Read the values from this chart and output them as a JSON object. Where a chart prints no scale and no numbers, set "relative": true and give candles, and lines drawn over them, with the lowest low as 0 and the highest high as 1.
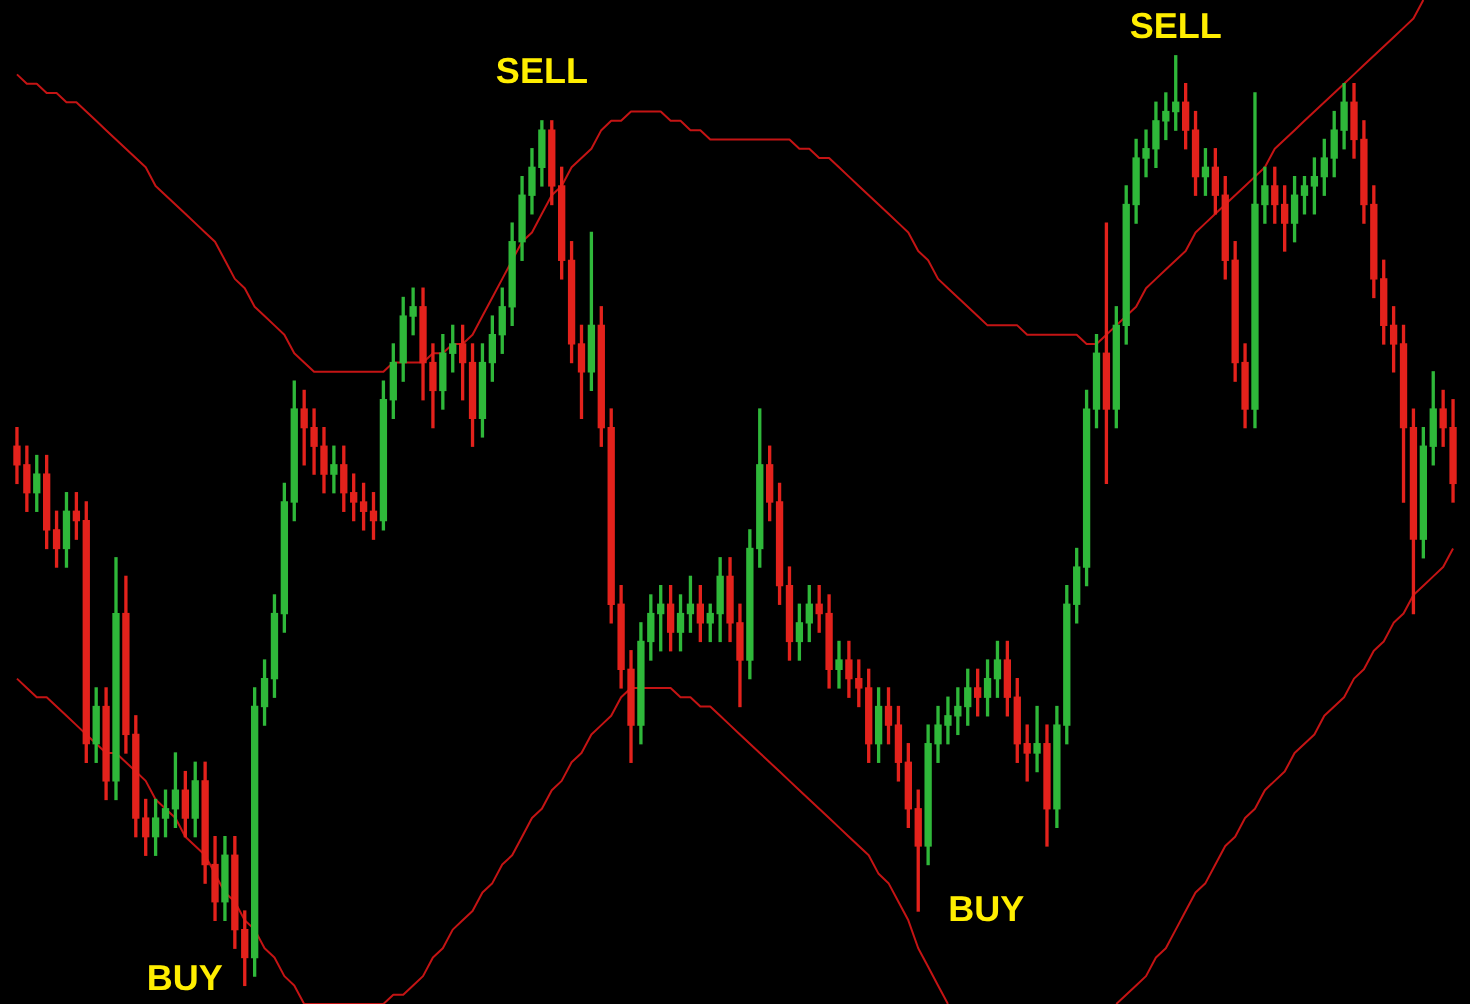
{
  "chart_data": {
    "type": "candlestick",
    "relative": true,
    "tick_labels": false,
    "grid": false,
    "legend": false,
    "categories": [
      null,
      null,
      null,
      null,
      null,
      null,
      null,
      null,
      null,
      null,
      null,
      null,
      null,
      null,
      null,
      null,
      null,
      null,
      null,
      null,
      null,
      null,
      null,
      null,
      null,
      null,
      null,
      null,
      null,
      null,
      null,
      null,
      null,
      null,
      null,
      null,
      null,
      null,
      null,
      null,
      null,
      null,
      null,
      null,
      null,
      null,
      null,
      null,
      null,
      null,
      null,
      null,
      null,
      null,
      null,
      null,
      null,
      null,
      null,
      null,
      null,
      null,
      null,
      null,
      null,
      null,
      null,
      null,
      null,
      null,
      null,
      null,
      null,
      null,
      null,
      null,
      null,
      null,
      null,
      null,
      null,
      null,
      null,
      null,
      null,
      null,
      null,
      null,
      null,
      null,
      null,
      null,
      null,
      null,
      null,
      null,
      null,
      null,
      null,
      null,
      null,
      null,
      null,
      null,
      null,
      null,
      null,
      null,
      null,
      null,
      null,
      null,
      null,
      null,
      null,
      null,
      null,
      null,
      null,
      null,
      null,
      null,
      null,
      null,
      null,
      null,
      null,
      null,
      null,
      null,
      null,
      null,
      null,
      null,
      null,
      null,
      null,
      null,
      null,
      null,
      null,
      null,
      null,
      null,
      null,
      null
    ],
    "ohlc": [
      [
        0.58,
        0.6,
        0.54,
        0.56
      ],
      [
        0.56,
        0.58,
        0.51,
        0.53
      ],
      [
        0.53,
        0.57,
        0.51,
        0.55
      ],
      [
        0.55,
        0.57,
        0.47,
        0.49
      ],
      [
        0.49,
        0.51,
        0.45,
        0.47
      ],
      [
        0.47,
        0.53,
        0.45,
        0.51
      ],
      [
        0.51,
        0.53,
        0.48,
        0.5
      ],
      [
        0.5,
        0.52,
        0.24,
        0.26
      ],
      [
        0.26,
        0.32,
        0.24,
        0.3
      ],
      [
        0.3,
        0.32,
        0.2,
        0.22
      ],
      [
        0.22,
        0.46,
        0.2,
        0.4
      ],
      [
        0.4,
        0.44,
        0.25,
        0.27
      ],
      [
        0.27,
        0.29,
        0.16,
        0.18
      ],
      [
        0.18,
        0.2,
        0.14,
        0.16
      ],
      [
        0.16,
        0.2,
        0.14,
        0.18
      ],
      [
        0.18,
        0.21,
        0.16,
        0.19
      ],
      [
        0.19,
        0.25,
        0.17,
        0.21
      ],
      [
        0.21,
        0.23,
        0.16,
        0.18
      ],
      [
        0.18,
        0.24,
        0.16,
        0.22
      ],
      [
        0.22,
        0.24,
        0.11,
        0.13
      ],
      [
        0.13,
        0.16,
        0.07,
        0.09
      ],
      [
        0.09,
        0.16,
        0.07,
        0.14
      ],
      [
        0.14,
        0.16,
        0.04,
        0.06
      ],
      [
        0.06,
        0.08,
        0.0,
        0.03
      ],
      [
        0.03,
        0.32,
        0.01,
        0.3
      ],
      [
        0.3,
        0.35,
        0.28,
        0.33
      ],
      [
        0.33,
        0.42,
        0.31,
        0.4
      ],
      [
        0.4,
        0.54,
        0.38,
        0.52
      ],
      [
        0.52,
        0.65,
        0.5,
        0.62
      ],
      [
        0.62,
        0.64,
        0.56,
        0.6
      ],
      [
        0.6,
        0.62,
        0.55,
        0.58
      ],
      [
        0.58,
        0.6,
        0.53,
        0.55
      ],
      [
        0.55,
        0.58,
        0.53,
        0.56
      ],
      [
        0.56,
        0.58,
        0.51,
        0.53
      ],
      [
        0.53,
        0.55,
        0.5,
        0.52
      ],
      [
        0.52,
        0.54,
        0.49,
        0.51
      ],
      [
        0.51,
        0.53,
        0.48,
        0.5
      ],
      [
        0.5,
        0.65,
        0.49,
        0.63
      ],
      [
        0.63,
        0.69,
        0.61,
        0.67
      ],
      [
        0.67,
        0.74,
        0.65,
        0.72
      ],
      [
        0.72,
        0.75,
        0.7,
        0.73
      ],
      [
        0.73,
        0.75,
        0.63,
        0.67
      ],
      [
        0.67,
        0.69,
        0.6,
        0.64
      ],
      [
        0.64,
        0.7,
        0.62,
        0.68
      ],
      [
        0.68,
        0.71,
        0.66,
        0.69
      ],
      [
        0.69,
        0.71,
        0.63,
        0.67
      ],
      [
        0.67,
        0.69,
        0.58,
        0.61
      ],
      [
        0.61,
        0.69,
        0.59,
        0.67
      ],
      [
        0.67,
        0.72,
        0.65,
        0.7
      ],
      [
        0.7,
        0.75,
        0.68,
        0.73
      ],
      [
        0.73,
        0.82,
        0.71,
        0.8
      ],
      [
        0.8,
        0.87,
        0.78,
        0.85
      ],
      [
        0.85,
        0.9,
        0.83,
        0.88
      ],
      [
        0.88,
        0.93,
        0.86,
        0.92
      ],
      [
        0.92,
        0.93,
        0.84,
        0.86
      ],
      [
        0.86,
        0.88,
        0.76,
        0.78
      ],
      [
        0.78,
        0.8,
        0.67,
        0.69
      ],
      [
        0.69,
        0.71,
        0.61,
        0.66
      ],
      [
        0.66,
        0.81,
        0.64,
        0.71
      ],
      [
        0.71,
        0.73,
        0.58,
        0.6
      ],
      [
        0.6,
        0.62,
        0.39,
        0.41
      ],
      [
        0.41,
        0.43,
        0.32,
        0.34
      ],
      [
        0.34,
        0.36,
        0.24,
        0.28
      ],
      [
        0.28,
        0.39,
        0.26,
        0.37
      ],
      [
        0.37,
        0.42,
        0.35,
        0.4
      ],
      [
        0.4,
        0.43,
        0.36,
        0.41
      ],
      [
        0.41,
        0.43,
        0.36,
        0.38
      ],
      [
        0.38,
        0.42,
        0.36,
        0.4
      ],
      [
        0.4,
        0.44,
        0.38,
        0.41
      ],
      [
        0.41,
        0.43,
        0.37,
        0.39
      ],
      [
        0.39,
        0.41,
        0.37,
        0.4
      ],
      [
        0.4,
        0.46,
        0.37,
        0.44
      ],
      [
        0.44,
        0.46,
        0.37,
        0.39
      ],
      [
        0.39,
        0.41,
        0.3,
        0.35
      ],
      [
        0.35,
        0.49,
        0.33,
        0.47
      ],
      [
        0.47,
        0.62,
        0.45,
        0.56
      ],
      [
        0.56,
        0.58,
        0.5,
        0.52
      ],
      [
        0.52,
        0.54,
        0.41,
        0.43
      ],
      [
        0.43,
        0.45,
        0.35,
        0.37
      ],
      [
        0.37,
        0.41,
        0.35,
        0.39
      ],
      [
        0.39,
        0.43,
        0.37,
        0.41
      ],
      [
        0.41,
        0.43,
        0.38,
        0.4
      ],
      [
        0.4,
        0.42,
        0.32,
        0.34
      ],
      [
        0.34,
        0.37,
        0.32,
        0.35
      ],
      [
        0.35,
        0.37,
        0.31,
        0.33
      ],
      [
        0.33,
        0.35,
        0.3,
        0.32
      ],
      [
        0.32,
        0.34,
        0.24,
        0.26
      ],
      [
        0.26,
        0.32,
        0.24,
        0.3
      ],
      [
        0.3,
        0.32,
        0.26,
        0.28
      ],
      [
        0.28,
        0.3,
        0.22,
        0.24
      ],
      [
        0.24,
        0.26,
        0.17,
        0.19
      ],
      [
        0.19,
        0.21,
        0.08,
        0.15
      ],
      [
        0.15,
        0.28,
        0.13,
        0.26
      ],
      [
        0.26,
        0.3,
        0.24,
        0.28
      ],
      [
        0.28,
        0.31,
        0.26,
        0.29
      ],
      [
        0.29,
        0.32,
        0.27,
        0.3
      ],
      [
        0.3,
        0.34,
        0.28,
        0.32
      ],
      [
        0.32,
        0.34,
        0.29,
        0.31
      ],
      [
        0.31,
        0.35,
        0.29,
        0.33
      ],
      [
        0.33,
        0.37,
        0.31,
        0.35
      ],
      [
        0.35,
        0.37,
        0.29,
        0.31
      ],
      [
        0.31,
        0.33,
        0.24,
        0.26
      ],
      [
        0.26,
        0.28,
        0.22,
        0.25
      ],
      [
        0.25,
        0.3,
        0.23,
        0.26
      ],
      [
        0.26,
        0.28,
        0.15,
        0.19
      ],
      [
        0.19,
        0.3,
        0.17,
        0.28
      ],
      [
        0.28,
        0.43,
        0.26,
        0.41
      ],
      [
        0.41,
        0.47,
        0.39,
        0.45
      ],
      [
        0.45,
        0.64,
        0.43,
        0.62
      ],
      [
        0.62,
        0.7,
        0.6,
        0.68
      ],
      [
        0.68,
        0.82,
        0.54,
        0.62
      ],
      [
        0.62,
        0.73,
        0.6,
        0.71
      ],
      [
        0.71,
        0.86,
        0.69,
        0.84
      ],
      [
        0.84,
        0.91,
        0.82,
        0.89
      ],
      [
        0.89,
        0.92,
        0.87,
        0.9
      ],
      [
        0.9,
        0.95,
        0.88,
        0.93
      ],
      [
        0.93,
        0.96,
        0.91,
        0.94
      ],
      [
        0.94,
        1.0,
        0.92,
        0.95
      ],
      [
        0.95,
        0.97,
        0.9,
        0.92
      ],
      [
        0.92,
        0.94,
        0.85,
        0.87
      ],
      [
        0.87,
        0.9,
        0.85,
        0.88
      ],
      [
        0.88,
        0.9,
        0.83,
        0.85
      ],
      [
        0.85,
        0.87,
        0.76,
        0.78
      ],
      [
        0.78,
        0.8,
        0.65,
        0.67
      ],
      [
        0.67,
        0.69,
        0.6,
        0.62
      ],
      [
        0.62,
        0.96,
        0.6,
        0.84
      ],
      [
        0.84,
        0.88,
        0.82,
        0.86
      ],
      [
        0.86,
        0.88,
        0.82,
        0.84
      ],
      [
        0.84,
        0.86,
        0.79,
        0.82
      ],
      [
        0.82,
        0.87,
        0.8,
        0.85
      ],
      [
        0.85,
        0.87,
        0.83,
        0.86
      ],
      [
        0.86,
        0.89,
        0.83,
        0.87
      ],
      [
        0.87,
        0.91,
        0.85,
        0.89
      ],
      [
        0.89,
        0.94,
        0.87,
        0.92
      ],
      [
        0.92,
        0.97,
        0.9,
        0.95
      ],
      [
        0.95,
        0.97,
        0.89,
        0.91
      ],
      [
        0.91,
        0.93,
        0.82,
        0.84
      ],
      [
        0.84,
        0.86,
        0.74,
        0.76
      ],
      [
        0.76,
        0.78,
        0.69,
        0.71
      ],
      [
        0.71,
        0.73,
        0.66,
        0.69
      ],
      [
        0.69,
        0.71,
        0.52,
        0.6
      ],
      [
        0.6,
        0.62,
        0.4,
        0.48
      ],
      [
        0.48,
        0.6,
        0.46,
        0.58
      ],
      [
        0.58,
        0.66,
        0.56,
        0.62
      ],
      [
        0.62,
        0.64,
        0.58,
        0.6
      ],
      [
        0.6,
        0.63,
        0.52,
        0.54
      ]
    ],
    "series": [
      {
        "type": "line",
        "color": "#c41414",
        "values": [
          0.98,
          0.97,
          0.97,
          0.96,
          0.96,
          0.95,
          0.95,
          0.94,
          0.93,
          0.92,
          0.91,
          0.9,
          0.89,
          0.88,
          0.86,
          0.85,
          0.84,
          0.83,
          0.82,
          0.81,
          0.8,
          0.78,
          0.76,
          0.75,
          0.73,
          0.72,
          0.71,
          0.7,
          0.68,
          0.67,
          0.66,
          0.66,
          0.66,
          0.66,
          0.66,
          0.66,
          0.66,
          0.66,
          0.67,
          0.67,
          0.67,
          0.67,
          0.68,
          0.68,
          0.69,
          0.69,
          0.7,
          0.72,
          0.74,
          0.76,
          0.78,
          0.8,
          0.81,
          0.83,
          0.85,
          0.86,
          0.88,
          0.89,
          0.9,
          0.92,
          0.93,
          0.93,
          0.94,
          0.94,
          0.94,
          0.94,
          0.93,
          0.93,
          0.92,
          0.92,
          0.91,
          0.91,
          0.91,
          0.91,
          0.91,
          0.91,
          0.91,
          0.91,
          0.91,
          0.9,
          0.9,
          0.89,
          0.89,
          0.88,
          0.87,
          0.86,
          0.85,
          0.84,
          0.83,
          0.82,
          0.81,
          0.79,
          0.78,
          0.76,
          0.75,
          0.74,
          0.73,
          0.72,
          0.71,
          0.71,
          0.71,
          0.71,
          0.7,
          0.7,
          0.7,
          0.7,
          0.7,
          0.7,
          0.69,
          0.69,
          0.7,
          0.71,
          0.72,
          0.73,
          0.75,
          0.76,
          0.77,
          0.78,
          0.79,
          0.81,
          0.82,
          0.83,
          0.84,
          0.85,
          0.86,
          0.87,
          0.88,
          0.9,
          0.91,
          0.92,
          0.93,
          0.94,
          0.95,
          0.96,
          0.97,
          0.98,
          0.99,
          1.0,
          1.01,
          1.02,
          1.03,
          1.04,
          1.06,
          null,
          null,
          null
        ]
      },
      {
        "type": "line",
        "color": "#c41414",
        "values": [
          0.33,
          0.32,
          0.31,
          0.31,
          0.3,
          0.29,
          0.28,
          0.27,
          0.26,
          0.25,
          0.25,
          0.24,
          0.23,
          0.22,
          0.2,
          0.19,
          0.18,
          0.16,
          0.15,
          0.14,
          0.12,
          0.1,
          0.09,
          0.07,
          0.06,
          0.04,
          0.03,
          0.01,
          0.0,
          -0.02,
          -0.02,
          -0.02,
          -0.02,
          -0.02,
          -0.02,
          -0.02,
          -0.02,
          -0.02,
          -0.01,
          -0.01,
          0.0,
          0.01,
          0.03,
          0.04,
          0.06,
          0.07,
          0.08,
          0.1,
          0.11,
          0.13,
          0.14,
          0.16,
          0.18,
          0.19,
          0.21,
          0.22,
          0.24,
          0.25,
          0.27,
          0.28,
          0.29,
          0.31,
          0.32,
          0.32,
          0.32,
          0.32,
          0.32,
          0.31,
          0.31,
          0.3,
          0.3,
          0.29,
          0.28,
          0.27,
          0.26,
          0.25,
          0.24,
          0.23,
          0.22,
          0.21,
          0.2,
          0.19,
          0.18,
          0.17,
          0.16,
          0.15,
          0.14,
          0.12,
          0.11,
          0.09,
          0.07,
          0.04,
          0.02,
          0.0,
          -0.02,
          null,
          null,
          null,
          null,
          null,
          null,
          null,
          null,
          null,
          null,
          null,
          null,
          null,
          null,
          null,
          null,
          -0.02,
          -0.01,
          0.0,
          0.01,
          0.03,
          0.04,
          0.06,
          0.08,
          0.1,
          0.11,
          0.13,
          0.15,
          0.16,
          0.18,
          0.19,
          0.21,
          0.22,
          0.23,
          0.25,
          0.26,
          0.27,
          0.29,
          0.3,
          0.31,
          0.33,
          0.34,
          0.36,
          0.37,
          0.39,
          0.4,
          0.42,
          0.43,
          0.44,
          0.45,
          0.47
        ]
      }
    ],
    "annotations": [
      "SELL",
      "SELL",
      "BUY",
      "BUY"
    ]
  }
}
